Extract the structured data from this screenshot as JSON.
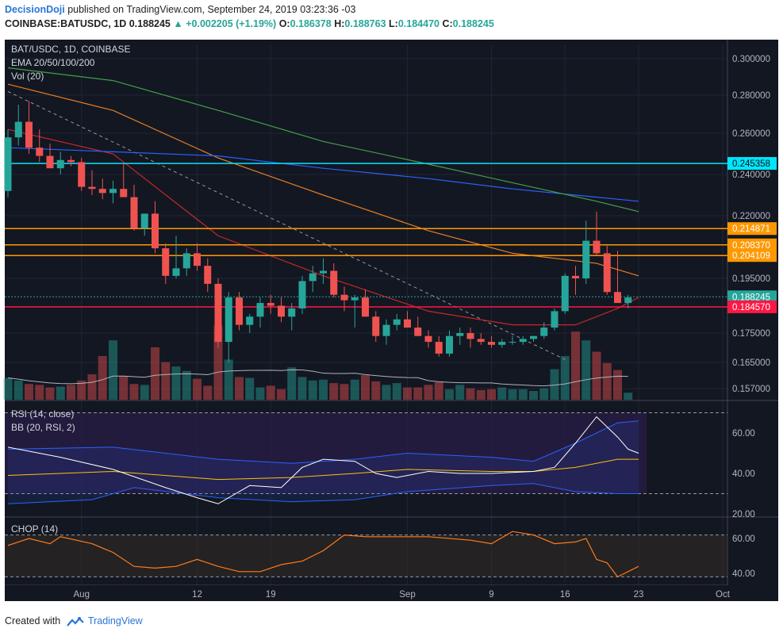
{
  "header": {
    "author": "DecisionDoji",
    "published_text": "published on TradingView.com, September 24, 2019 03:23:36 -03",
    "symbol": "COINBASE:BATUSDC, 1D",
    "price": "0.188245",
    "change": "+0.002205 (+1.19%)",
    "o_label": "O:",
    "open": "0.186378",
    "h_label": "H:",
    "high": "0.188763",
    "l_label": "L:",
    "low": "0.184470",
    "c_label": "C:",
    "close": "0.188245"
  },
  "footer": {
    "created_with": "Created with",
    "brand": "TradingView"
  },
  "colors": {
    "background": "#131722",
    "bull": "#26a69a",
    "bear": "#ef5350",
    "ema20": "#c62828",
    "ema50": "#e67e22",
    "ema100": "#2962ff",
    "ema200": "#43a047",
    "hline_cyan": "#00e5ff",
    "hline_orange": "#ff9800",
    "hline_red": "#ff1744",
    "rsi": "#ffffff",
    "bb_mid": "#ffc107",
    "bb_band": "#2962ff",
    "chop": "#ff7a1a"
  },
  "chart_data": {
    "type": "candlestick",
    "legend": [
      "BAT/USDC, 1D, COINBASE",
      "EMA 20/50/100/200",
      "Vol (20)"
    ],
    "y_ticks": [
      "0.300000",
      "0.280000",
      "0.260000",
      "0.240000",
      "0.220000",
      "0.195000",
      "0.175000",
      "0.165000",
      "0.157000"
    ],
    "y_tick_values": [
      0.3,
      0.28,
      0.26,
      0.24,
      0.22,
      0.195,
      0.175,
      0.165,
      0.157
    ],
    "x_ticks": [
      {
        "label": "Aug",
        "index": 7
      },
      {
        "label": "12",
        "index": 18
      },
      {
        "label": "19",
        "index": 25
      },
      {
        "label": "Sep",
        "index": 38
      },
      {
        "label": "9",
        "index": 46
      },
      {
        "label": "16",
        "index": 53
      },
      {
        "label": "23",
        "index": 60
      },
      {
        "label": "Oct",
        "index": 68
      }
    ],
    "candles": [
      {
        "o": 0.232,
        "h": 0.262,
        "l": 0.229,
        "c": 0.258
      },
      {
        "o": 0.258,
        "h": 0.275,
        "l": 0.254,
        "c": 0.266
      },
      {
        "o": 0.266,
        "h": 0.277,
        "l": 0.25,
        "c": 0.253
      },
      {
        "o": 0.253,
        "h": 0.262,
        "l": 0.246,
        "c": 0.249
      },
      {
        "o": 0.249,
        "h": 0.255,
        "l": 0.244,
        "c": 0.243
      },
      {
        "o": 0.243,
        "h": 0.251,
        "l": 0.24,
        "c": 0.247
      },
      {
        "o": 0.247,
        "h": 0.249,
        "l": 0.244,
        "c": 0.246
      },
      {
        "o": 0.246,
        "h": 0.248,
        "l": 0.232,
        "c": 0.234
      },
      {
        "o": 0.234,
        "h": 0.242,
        "l": 0.23,
        "c": 0.233
      },
      {
        "o": 0.233,
        "h": 0.238,
        "l": 0.228,
        "c": 0.231
      },
      {
        "o": 0.231,
        "h": 0.237,
        "l": 0.226,
        "c": 0.233
      },
      {
        "o": 0.233,
        "h": 0.245,
        "l": 0.23,
        "c": 0.229
      },
      {
        "o": 0.229,
        "h": 0.235,
        "l": 0.214,
        "c": 0.215
      },
      {
        "o": 0.215,
        "h": 0.22,
        "l": 0.212,
        "c": 0.221
      },
      {
        "o": 0.221,
        "h": 0.227,
        "l": 0.205,
        "c": 0.207
      },
      {
        "o": 0.207,
        "h": 0.209,
        "l": 0.193,
        "c": 0.196
      },
      {
        "o": 0.196,
        "h": 0.212,
        "l": 0.195,
        "c": 0.199
      },
      {
        "o": 0.199,
        "h": 0.207,
        "l": 0.196,
        "c": 0.205
      },
      {
        "o": 0.205,
        "h": 0.209,
        "l": 0.198,
        "c": 0.2
      },
      {
        "o": 0.2,
        "h": 0.203,
        "l": 0.19,
        "c": 0.193
      },
      {
        "o": 0.193,
        "h": 0.195,
        "l": 0.17,
        "c": 0.172
      },
      {
        "o": 0.172,
        "h": 0.19,
        "l": 0.165,
        "c": 0.188
      },
      {
        "o": 0.188,
        "h": 0.19,
        "l": 0.176,
        "c": 0.178
      },
      {
        "o": 0.178,
        "h": 0.182,
        "l": 0.175,
        "c": 0.181
      },
      {
        "o": 0.181,
        "h": 0.188,
        "l": 0.177,
        "c": 0.186
      },
      {
        "o": 0.186,
        "h": 0.189,
        "l": 0.182,
        "c": 0.185
      },
      {
        "o": 0.185,
        "h": 0.188,
        "l": 0.179,
        "c": 0.181
      },
      {
        "o": 0.181,
        "h": 0.186,
        "l": 0.176,
        "c": 0.184
      },
      {
        "o": 0.184,
        "h": 0.196,
        "l": 0.182,
        "c": 0.194
      },
      {
        "o": 0.194,
        "h": 0.2,
        "l": 0.19,
        "c": 0.197
      },
      {
        "o": 0.197,
        "h": 0.203,
        "l": 0.193,
        "c": 0.198
      },
      {
        "o": 0.198,
        "h": 0.201,
        "l": 0.188,
        "c": 0.189
      },
      {
        "o": 0.189,
        "h": 0.192,
        "l": 0.183,
        "c": 0.187
      },
      {
        "o": 0.187,
        "h": 0.189,
        "l": 0.177,
        "c": 0.188
      },
      {
        "o": 0.188,
        "h": 0.191,
        "l": 0.181,
        "c": 0.181
      },
      {
        "o": 0.181,
        "h": 0.183,
        "l": 0.172,
        "c": 0.174
      },
      {
        "o": 0.174,
        "h": 0.18,
        "l": 0.171,
        "c": 0.178
      },
      {
        "o": 0.178,
        "h": 0.182,
        "l": 0.176,
        "c": 0.18
      },
      {
        "o": 0.18,
        "h": 0.183,
        "l": 0.177,
        "c": 0.177
      },
      {
        "o": 0.177,
        "h": 0.181,
        "l": 0.174,
        "c": 0.174
      },
      {
        "o": 0.174,
        "h": 0.176,
        "l": 0.17,
        "c": 0.172
      },
      {
        "o": 0.172,
        "h": 0.174,
        "l": 0.167,
        "c": 0.168
      },
      {
        "o": 0.168,
        "h": 0.176,
        "l": 0.167,
        "c": 0.174
      },
      {
        "o": 0.174,
        "h": 0.177,
        "l": 0.171,
        "c": 0.175
      },
      {
        "o": 0.175,
        "h": 0.177,
        "l": 0.17,
        "c": 0.173
      },
      {
        "o": 0.173,
        "h": 0.175,
        "l": 0.171,
        "c": 0.172
      },
      {
        "o": 0.172,
        "h": 0.174,
        "l": 0.17,
        "c": 0.171
      },
      {
        "o": 0.171,
        "h": 0.173,
        "l": 0.17,
        "c": 0.172
      },
      {
        "o": 0.172,
        "h": 0.174,
        "l": 0.171,
        "c": 0.172
      },
      {
        "o": 0.172,
        "h": 0.174,
        "l": 0.171,
        "c": 0.173
      },
      {
        "o": 0.173,
        "h": 0.174,
        "l": 0.172,
        "c": 0.174
      },
      {
        "o": 0.174,
        "h": 0.179,
        "l": 0.173,
        "c": 0.177
      },
      {
        "o": 0.177,
        "h": 0.184,
        "l": 0.176,
        "c": 0.183
      },
      {
        "o": 0.183,
        "h": 0.197,
        "l": 0.182,
        "c": 0.196
      },
      {
        "o": 0.196,
        "h": 0.2,
        "l": 0.189,
        "c": 0.195
      },
      {
        "o": 0.195,
        "h": 0.218,
        "l": 0.193,
        "c": 0.21
      },
      {
        "o": 0.21,
        "h": 0.222,
        "l": 0.204,
        "c": 0.205
      },
      {
        "o": 0.205,
        "h": 0.208,
        "l": 0.189,
        "c": 0.19
      },
      {
        "o": 0.19,
        "h": 0.206,
        "l": 0.186,
        "c": 0.186
      },
      {
        "o": 0.186,
        "h": 0.189,
        "l": 0.184,
        "c": 0.188
      }
    ],
    "volume": [
      0.25,
      0.22,
      0.18,
      0.17,
      0.14,
      0.15,
      0.17,
      0.22,
      0.29,
      0.5,
      0.68,
      0.27,
      0.18,
      0.17,
      0.6,
      0.43,
      0.38,
      0.33,
      0.24,
      0.16,
      0.85,
      0.46,
      0.26,
      0.25,
      0.14,
      0.16,
      0.12,
      0.37,
      0.26,
      0.22,
      0.23,
      0.19,
      0.18,
      0.23,
      0.28,
      0.21,
      0.17,
      0.19,
      0.14,
      0.14,
      0.17,
      0.2,
      0.12,
      0.17,
      0.13,
      0.11,
      0.12,
      0.14,
      0.12,
      0.12,
      0.1,
      0.13,
      0.35,
      0.5,
      0.78,
      0.68,
      0.55,
      0.42,
      0.34,
      0.08
    ],
    "ema": [
      {
        "name": "EMA 20",
        "color": "#c62828",
        "points": [
          [
            0,
            0.262
          ],
          [
            10,
            0.25
          ],
          [
            20,
            0.212
          ],
          [
            30,
            0.196
          ],
          [
            40,
            0.183
          ],
          [
            48,
            0.178
          ],
          [
            54,
            0.178
          ],
          [
            58,
            0.184
          ],
          [
            60,
            0.188
          ]
        ]
      },
      {
        "name": "EMA 50",
        "color": "#e67e22",
        "points": [
          [
            0,
            0.286
          ],
          [
            10,
            0.272
          ],
          [
            20,
            0.248
          ],
          [
            30,
            0.23
          ],
          [
            40,
            0.214
          ],
          [
            48,
            0.205
          ],
          [
            56,
            0.201
          ],
          [
            60,
            0.196
          ]
        ]
      },
      {
        "name": "EMA 100",
        "color": "#2962ff",
        "points": [
          [
            0,
            0.253
          ],
          [
            10,
            0.251
          ],
          [
            20,
            0.249
          ],
          [
            30,
            0.243
          ],
          [
            40,
            0.238
          ],
          [
            48,
            0.233
          ],
          [
            56,
            0.229
          ],
          [
            60,
            0.227
          ]
        ]
      },
      {
        "name": "EMA 200",
        "color": "#43a047",
        "points": [
          [
            0,
            0.295
          ],
          [
            10,
            0.288
          ],
          [
            20,
            0.272
          ],
          [
            30,
            0.256
          ],
          [
            40,
            0.245
          ],
          [
            48,
            0.236
          ],
          [
            56,
            0.227
          ],
          [
            60,
            0.222
          ]
        ]
      }
    ],
    "trendline": [
      [
        0,
        0.282
      ],
      [
        53,
        0.166
      ]
    ],
    "hlines": [
      {
        "value": 0.245358,
        "label": "0.245358",
        "color": "#00e5ff",
        "text_color": "#111111"
      },
      {
        "value": 0.214871,
        "label": "0.214871",
        "color": "#ff9800",
        "text_color": "#ffffff"
      },
      {
        "value": 0.20837,
        "label": "0.208370",
        "color": "#ff9800",
        "text_color": "#ffffff"
      },
      {
        "value": 0.204109,
        "label": "0.204109",
        "color": "#ff9800",
        "text_color": "#ffffff"
      },
      {
        "value": 0.188245,
        "label": "0.188245",
        "color": "#26a69a",
        "text_color": "#ffffff"
      },
      {
        "value": 0.18457,
        "label": "0.184570",
        "color": "#ff1744",
        "text_color": "#ffffff"
      }
    ],
    "rsi_panel": {
      "title": "RSI (14, close)",
      "subtitle": "BB (20, RSI, 2)",
      "y_ticks": [
        "60.00",
        "40.00",
        "20.00"
      ],
      "y_tick_values": [
        60,
        40,
        20
      ],
      "levels": [
        70,
        30
      ],
      "rsi": [
        [
          0,
          53
        ],
        [
          5,
          48
        ],
        [
          10,
          42
        ],
        [
          15,
          33
        ],
        [
          18,
          28
        ],
        [
          20,
          25
        ],
        [
          23,
          34
        ],
        [
          26,
          33
        ],
        [
          28,
          43
        ],
        [
          30,
          47
        ],
        [
          33,
          46
        ],
        [
          35,
          40
        ],
        [
          37,
          38
        ],
        [
          40,
          41
        ],
        [
          43,
          40
        ],
        [
          46,
          40
        ],
        [
          50,
          41
        ],
        [
          52,
          43
        ],
        [
          54,
          55
        ],
        [
          56,
          68
        ],
        [
          57,
          63
        ],
        [
          58,
          58
        ],
        [
          59,
          52
        ],
        [
          60,
          50
        ]
      ],
      "bb_upper": [
        [
          0,
          52
        ],
        [
          10,
          53
        ],
        [
          20,
          47
        ],
        [
          27,
          45
        ],
        [
          33,
          47
        ],
        [
          38,
          50
        ],
        [
          46,
          48
        ],
        [
          50,
          46
        ],
        [
          54,
          55
        ],
        [
          58,
          65
        ],
        [
          60,
          66
        ]
      ],
      "bb_mid": [
        [
          0,
          39
        ],
        [
          10,
          41
        ],
        [
          20,
          37
        ],
        [
          27,
          38
        ],
        [
          33,
          40
        ],
        [
          38,
          42
        ],
        [
          46,
          41
        ],
        [
          50,
          41
        ],
        [
          54,
          43
        ],
        [
          58,
          47
        ],
        [
          60,
          47
        ]
      ],
      "bb_lower": [
        [
          0,
          25
        ],
        [
          8,
          27
        ],
        [
          12,
          33
        ],
        [
          20,
          28
        ],
        [
          27,
          26
        ],
        [
          33,
          27
        ],
        [
          38,
          31
        ],
        [
          46,
          34
        ],
        [
          50,
          35
        ],
        [
          54,
          31
        ],
        [
          58,
          30
        ],
        [
          60,
          30
        ]
      ]
    },
    "chop_panel": {
      "title": "CHOP (14)",
      "y_ticks": [
        "60.00",
        "40.00"
      ],
      "y_tick_values": [
        60,
        40
      ],
      "levels": [
        62,
        38
      ],
      "chop": [
        [
          0,
          56
        ],
        [
          2,
          60
        ],
        [
          4,
          57
        ],
        [
          5,
          61
        ],
        [
          8,
          57
        ],
        [
          10,
          52
        ],
        [
          12,
          44
        ],
        [
          14,
          43
        ],
        [
          16,
          44
        ],
        [
          18,
          48
        ],
        [
          20,
          44
        ],
        [
          22,
          41
        ],
        [
          24,
          41
        ],
        [
          26,
          45
        ],
        [
          28,
          47
        ],
        [
          30,
          53
        ],
        [
          32,
          62
        ],
        [
          34,
          61
        ],
        [
          36,
          61
        ],
        [
          40,
          61
        ],
        [
          44,
          59
        ],
        [
          46,
          57
        ],
        [
          48,
          64
        ],
        [
          50,
          62
        ],
        [
          52,
          57
        ],
        [
          54,
          58
        ],
        [
          55,
          60
        ],
        [
          56,
          48
        ],
        [
          57,
          46
        ],
        [
          58,
          38
        ],
        [
          60,
          44
        ]
      ]
    }
  }
}
